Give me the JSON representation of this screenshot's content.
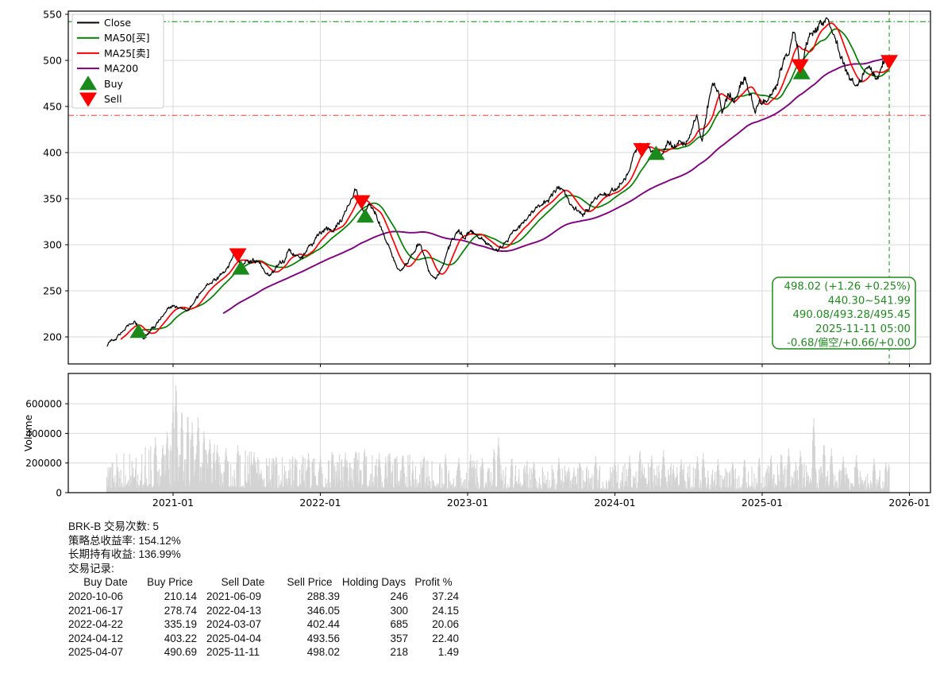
{
  "chart_data": {
    "type": "line",
    "title": "",
    "symbol": "BRK-B",
    "x_ticks": [
      {
        "t": 2021.0,
        "label": "2021-01"
      },
      {
        "t": 2022.0,
        "label": "2022-01"
      },
      {
        "t": 2023.0,
        "label": "2023-01"
      },
      {
        "t": 2024.0,
        "label": "2024-01"
      },
      {
        "t": 2025.0,
        "label": "2025-01"
      },
      {
        "t": 2026.0,
        "label": "2026-01"
      }
    ],
    "price_ticks": [
      550,
      500,
      450,
      400,
      350,
      300,
      250,
      200
    ],
    "x_range": [
      2020.288,
      2026.14
    ],
    "y_range": [
      170.7,
      553.4
    ],
    "grid": true,
    "legend_position": "upper-left",
    "legend": [
      {
        "label": "Close",
        "kind": "line",
        "color": "#000000"
      },
      {
        "label": "MA50[买]",
        "kind": "line",
        "color": "#008000"
      },
      {
        "label": "MA25[卖]",
        "kind": "line",
        "color": "#ff0000"
      },
      {
        "label": "MA200",
        "kind": "line",
        "color": "#800080"
      },
      {
        "label": "Buy",
        "kind": "tri-up",
        "color": "#1a8a1a"
      },
      {
        "label": "Sell",
        "kind": "tri-down",
        "color": "#ff0000"
      }
    ],
    "series": [
      {
        "name": "Close",
        "color": "#000000",
        "keypoints": [
          [
            2020.55,
            190
          ],
          [
            2020.6,
            197
          ],
          [
            2020.66,
            206
          ],
          [
            2020.71,
            216
          ],
          [
            2020.74,
            218
          ],
          [
            2020.765,
            210
          ],
          [
            2020.8,
            200
          ],
          [
            2020.84,
            206
          ],
          [
            2020.88,
            213
          ],
          [
            2020.92,
            221
          ],
          [
            2020.96,
            229
          ],
          [
            2021.0,
            232
          ],
          [
            2021.05,
            230
          ],
          [
            2021.1,
            226
          ],
          [
            2021.15,
            241
          ],
          [
            2021.21,
            252
          ],
          [
            2021.27,
            261
          ],
          [
            2021.33,
            269
          ],
          [
            2021.38,
            279
          ],
          [
            2021.42,
            292
          ],
          [
            2021.44,
            288
          ],
          [
            2021.465,
            277
          ],
          [
            2021.5,
            281
          ],
          [
            2021.55,
            284
          ],
          [
            2021.6,
            276
          ],
          [
            2021.65,
            269
          ],
          [
            2021.7,
            279
          ],
          [
            2021.75,
            282
          ],
          [
            2021.79,
            293
          ],
          [
            2021.83,
            289
          ],
          [
            2021.88,
            287
          ],
          [
            2021.92,
            298
          ],
          [
            2021.96,
            302
          ],
          [
            2022.0,
            309
          ],
          [
            2022.04,
            316
          ],
          [
            2022.08,
            313
          ],
          [
            2022.13,
            323
          ],
          [
            2022.17,
            334
          ],
          [
            2022.21,
            350
          ],
          [
            2022.235,
            361
          ],
          [
            2022.26,
            353
          ],
          [
            2022.28,
            346
          ],
          [
            2022.3,
            336
          ],
          [
            2022.33,
            344
          ],
          [
            2022.36,
            340
          ],
          [
            2022.4,
            322
          ],
          [
            2022.44,
            308
          ],
          [
            2022.48,
            291
          ],
          [
            2022.52,
            274
          ],
          [
            2022.56,
            271
          ],
          [
            2022.6,
            284
          ],
          [
            2022.64,
            296
          ],
          [
            2022.67,
            302
          ],
          [
            2022.71,
            287
          ],
          [
            2022.75,
            269
          ],
          [
            2022.78,
            263
          ],
          [
            2022.82,
            273
          ],
          [
            2022.86,
            293
          ],
          [
            2022.9,
            304
          ],
          [
            2022.94,
            310
          ],
          [
            2022.98,
            306
          ],
          [
            2023.02,
            311
          ],
          [
            2023.06,
            309
          ],
          [
            2023.1,
            304
          ],
          [
            2023.15,
            297
          ],
          [
            2023.2,
            294
          ],
          [
            2023.25,
            302
          ],
          [
            2023.3,
            311
          ],
          [
            2023.35,
            322
          ],
          [
            2023.4,
            328
          ],
          [
            2023.45,
            335
          ],
          [
            2023.5,
            342
          ],
          [
            2023.55,
            350
          ],
          [
            2023.6,
            358
          ],
          [
            2023.63,
            361
          ],
          [
            2023.67,
            353
          ],
          [
            2023.71,
            345
          ],
          [
            2023.75,
            338
          ],
          [
            2023.79,
            333
          ],
          [
            2023.83,
            343
          ],
          [
            2023.87,
            352
          ],
          [
            2023.91,
            356
          ],
          [
            2023.95,
            357
          ],
          [
            2024.0,
            360
          ],
          [
            2024.05,
            368
          ],
          [
            2024.1,
            385
          ],
          [
            2024.14,
            401
          ],
          [
            2024.17,
            413
          ],
          [
            2024.19,
            403
          ],
          [
            2024.22,
            407
          ],
          [
            2024.25,
            399
          ],
          [
            2024.28,
            404
          ],
          [
            2024.32,
            401
          ],
          [
            2024.36,
            409
          ],
          [
            2024.4,
            406
          ],
          [
            2024.44,
            410
          ],
          [
            2024.48,
            414
          ],
          [
            2024.52,
            426
          ],
          [
            2024.555,
            446
          ],
          [
            2024.59,
            411
          ],
          [
            2024.62,
            441
          ],
          [
            2024.66,
            476
          ],
          [
            2024.7,
            461
          ],
          [
            2024.73,
            445
          ],
          [
            2024.77,
            463
          ],
          [
            2024.81,
            456
          ],
          [
            2024.85,
            471
          ],
          [
            2024.88,
            478
          ],
          [
            2024.92,
            461
          ],
          [
            2024.95,
            445
          ],
          [
            2024.98,
            459
          ],
          [
            2025.02,
            453
          ],
          [
            2025.06,
            461
          ],
          [
            2025.1,
            473
          ],
          [
            2025.14,
            491
          ],
          [
            2025.18,
            513
          ],
          [
            2025.21,
            527
          ],
          [
            2025.24,
            513
          ],
          [
            2025.257,
            494
          ],
          [
            2025.268,
            491
          ],
          [
            2025.3,
            518
          ],
          [
            2025.34,
            531
          ],
          [
            2025.38,
            534
          ],
          [
            2025.42,
            538
          ],
          [
            2025.45,
            540
          ],
          [
            2025.48,
            528
          ],
          [
            2025.52,
            513
          ],
          [
            2025.55,
            501
          ],
          [
            2025.58,
            489
          ],
          [
            2025.61,
            479
          ],
          [
            2025.64,
            473
          ],
          [
            2025.67,
            481
          ],
          [
            2025.7,
            493
          ],
          [
            2025.73,
            499
          ],
          [
            2025.76,
            486
          ],
          [
            2025.79,
            481
          ],
          [
            2025.82,
            496
          ],
          [
            2025.84,
            503
          ],
          [
            2025.852,
            492
          ],
          [
            2025.863,
            498.02
          ]
        ]
      }
    ],
    "moving_averages": [
      {
        "name": "MA25[卖]",
        "window": 25,
        "color": "#ff0000",
        "width": 1.7
      },
      {
        "name": "MA50[买]",
        "window": 50,
        "color": "#008000",
        "width": 1.7
      },
      {
        "name": "MA200",
        "window": 200,
        "color": "#800080",
        "width": 1.9
      }
    ],
    "markers": {
      "buy": [
        [
          2020.765,
          210.14
        ],
        [
          2021.46,
          278.74
        ],
        [
          2022.305,
          335.19
        ],
        [
          2024.28,
          403.22
        ],
        [
          2025.268,
          490.69
        ]
      ],
      "sell": [
        [
          2021.44,
          288.39
        ],
        [
          2022.28,
          346.05
        ],
        [
          2024.183,
          402.44
        ],
        [
          2025.257,
          493.56
        ],
        [
          2025.863,
          498.02
        ]
      ]
    },
    "hlines": [
      {
        "value": 541.99,
        "color": "#3fae3f",
        "style": "dashdot"
      },
      {
        "value": 440.3,
        "color": "#ff5c5c",
        "style": "dashdot"
      }
    ],
    "vline": {
      "t": 2025.863,
      "label": "2025-11-11",
      "color": "#3fae3f",
      "style": "dashed"
    },
    "volume": {
      "ylabel": "Volume",
      "y_ticks": [
        600000,
        400000,
        200000,
        0
      ],
      "bar_color": "#d3d3d3",
      "envelope_k": [
        [
          2020.55,
          130
        ],
        [
          2020.75,
          150
        ],
        [
          2020.95,
          185
        ],
        [
          2021.05,
          210
        ],
        [
          2021.2,
          185
        ],
        [
          2021.4,
          160
        ],
        [
          2021.6,
          140
        ],
        [
          2021.8,
          130
        ],
        [
          2022.0,
          135
        ],
        [
          2022.3,
          145
        ],
        [
          2022.6,
          135
        ],
        [
          2022.9,
          120
        ],
        [
          2023.1,
          115
        ],
        [
          2023.3,
          120
        ],
        [
          2023.6,
          100
        ],
        [
          2023.9,
          95
        ],
        [
          2024.1,
          105
        ],
        [
          2024.3,
          110
        ],
        [
          2024.6,
          95
        ],
        [
          2024.9,
          90
        ],
        [
          2025.1,
          105
        ],
        [
          2025.3,
          115
        ],
        [
          2025.5,
          105
        ],
        [
          2025.7,
          90
        ],
        [
          2025.863,
          95
        ]
      ],
      "spikes_k": [
        [
          2020.88,
          380
        ],
        [
          2020.93,
          340
        ],
        [
          2020.96,
          430
        ],
        [
          2021.0,
          620
        ],
        [
          2021.02,
          773
        ],
        [
          2021.06,
          590
        ],
        [
          2021.1,
          560
        ],
        [
          2021.13,
          480
        ],
        [
          2021.17,
          520
        ],
        [
          2021.21,
          430
        ],
        [
          2021.25,
          380
        ],
        [
          2021.3,
          330
        ],
        [
          2021.36,
          300
        ],
        [
          2021.44,
          330
        ],
        [
          2021.55,
          280
        ],
        [
          2021.7,
          260
        ],
        [
          2021.83,
          250
        ],
        [
          2021.92,
          270
        ],
        [
          2022.0,
          260
        ],
        [
          2022.08,
          290
        ],
        [
          2022.17,
          270
        ],
        [
          2022.24,
          300
        ],
        [
          2022.3,
          310
        ],
        [
          2022.4,
          270
        ],
        [
          2022.47,
          290
        ],
        [
          2022.56,
          260
        ],
        [
          2022.7,
          250
        ],
        [
          2022.85,
          270
        ],
        [
          2022.94,
          240
        ],
        [
          2023.02,
          260
        ],
        [
          2023.1,
          240
        ],
        [
          2023.18,
          310
        ],
        [
          2023.21,
          380
        ],
        [
          2023.3,
          250
        ],
        [
          2023.45,
          220
        ],
        [
          2023.62,
          240
        ],
        [
          2023.76,
          220
        ],
        [
          2023.87,
          250
        ],
        [
          2024.0,
          230
        ],
        [
          2024.1,
          250
        ],
        [
          2024.17,
          300
        ],
        [
          2024.25,
          260
        ],
        [
          2024.33,
          290
        ],
        [
          2024.45,
          230
        ],
        [
          2024.56,
          250
        ],
        [
          2024.6,
          270
        ],
        [
          2024.7,
          230
        ],
        [
          2024.8,
          220
        ],
        [
          2024.88,
          240
        ],
        [
          2024.98,
          250
        ],
        [
          2025.06,
          260
        ],
        [
          2025.13,
          280
        ],
        [
          2025.18,
          300
        ],
        [
          2025.26,
          290
        ],
        [
          2025.35,
          520
        ],
        [
          2025.42,
          350
        ],
        [
          2025.47,
          300
        ],
        [
          2025.55,
          250
        ],
        [
          2025.64,
          260
        ],
        [
          2025.76,
          230
        ],
        [
          2025.84,
          210
        ],
        [
          2025.86,
          200
        ]
      ]
    },
    "colors": {
      "grid": "#d9d9d9",
      "spine": "#000000"
    }
  },
  "info_box": {
    "color": "#1f8b1f",
    "lines": [
      "498.02 (+1.26 +0.25%)",
      "440.30~541.99",
      "490.08/493.28/495.45",
      "2025-11-11 05:00",
      "-0.68/偏空/+0.66/+0.00"
    ]
  },
  "summary": {
    "line1": "BRK-B 交易次数: 5",
    "line2": "策略总收益率: 154.12%",
    "line3": "长期持有收益: 136.99%",
    "line4": "交易记录:"
  },
  "trades": {
    "headers": [
      "Buy Date",
      "Buy Price",
      "Sell Date",
      "Sell Price",
      "Holding Days",
      "Profit %"
    ],
    "rows": [
      [
        "2020-10-06",
        "210.14",
        "2021-06-09",
        "288.39",
        "246",
        "37.24"
      ],
      [
        "2021-06-17",
        "278.74",
        "2022-04-13",
        "346.05",
        "300",
        "24.15"
      ],
      [
        "2022-04-22",
        "335.19",
        "2024-03-07",
        "402.44",
        "685",
        "20.06"
      ],
      [
        "2024-04-12",
        "403.22",
        "2025-04-04",
        "493.56",
        "357",
        "22.40"
      ],
      [
        "2025-04-07",
        "490.69",
        "2025-11-11",
        "498.02",
        "218",
        "1.49"
      ]
    ]
  }
}
